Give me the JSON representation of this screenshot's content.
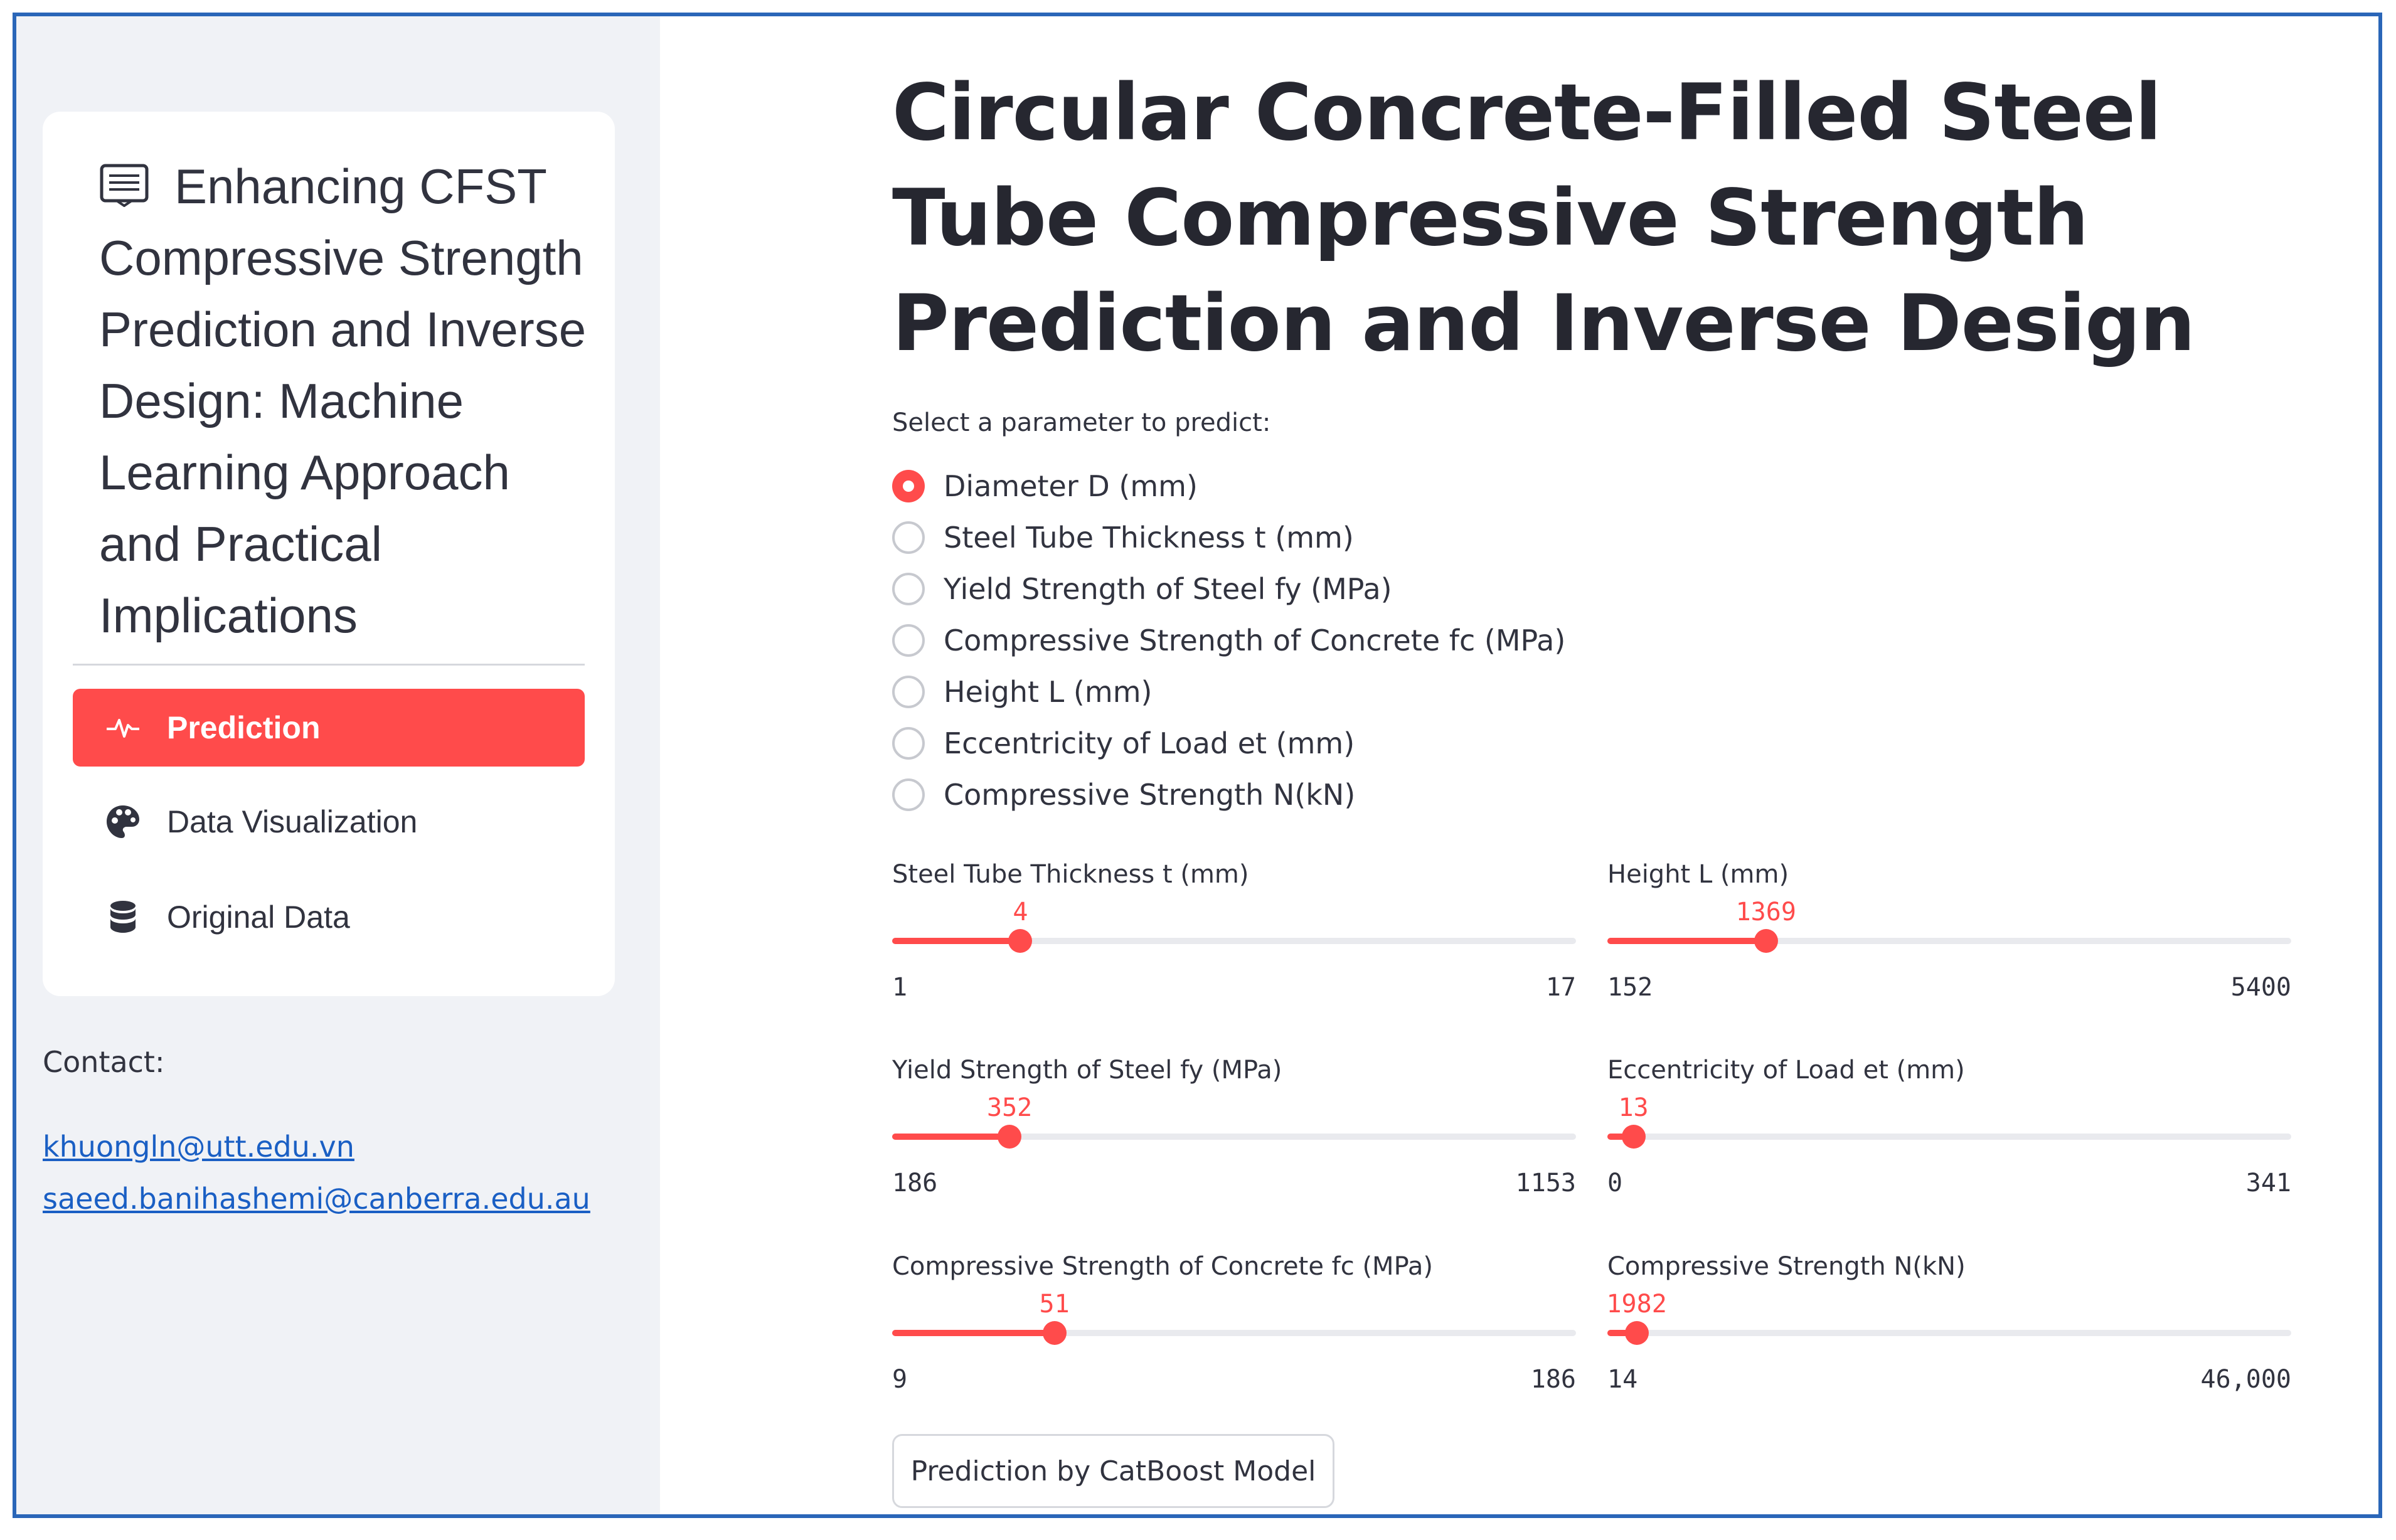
{
  "sidebar": {
    "title": "Enhancing CFST Compressive Strength Prediction and Inverse Design: Machine Learning Approach and Practical Implications",
    "title_icon": "menu-list-icon",
    "nav_items": [
      {
        "label": "Prediction",
        "icon": "pulse-icon",
        "active": true
      },
      {
        "label": "Data Visualization",
        "icon": "palette-icon",
        "active": false
      },
      {
        "label": "Original Data",
        "icon": "database-icon",
        "active": false
      }
    ],
    "contact_label": "Contact:",
    "contacts": [
      "khuongln@utt.edu.vn",
      "saeed.banihashemi@canberra.edu.au"
    ]
  },
  "main": {
    "title": "Circular Concrete-Filled Steel Tube Compressive Strength Prediction and Inverse Design",
    "radio_label": "Select a parameter to predict:",
    "radio_options": [
      {
        "label": "Diameter D (mm)",
        "checked": true
      },
      {
        "label": "Steel Tube Thickness t (mm)",
        "checked": false
      },
      {
        "label": "Yield Strength of Steel fy (MPa)",
        "checked": false
      },
      {
        "label": "Compressive Strength of Concrete fc (MPa)",
        "checked": false
      },
      {
        "label": "Height L (mm)",
        "checked": false
      },
      {
        "label": "Eccentricity of Load et (mm)",
        "checked": false
      },
      {
        "label": "Compressive Strength N(kN)",
        "checked": false
      }
    ],
    "sliders": [
      {
        "label": "Steel Tube Thickness t (mm)",
        "value": 4,
        "min": 1,
        "max": 17,
        "value_text": "4",
        "min_text": "1",
        "max_text": "17"
      },
      {
        "label": "Height L (mm)",
        "value": 1369,
        "min": 152,
        "max": 5400,
        "value_text": "1369",
        "min_text": "152",
        "max_text": "5400"
      },
      {
        "label": "Yield Strength of Steel fy (MPa)",
        "value": 352,
        "min": 186,
        "max": 1153,
        "value_text": "352",
        "min_text": "186",
        "max_text": "1153"
      },
      {
        "label": "Eccentricity of Load et (mm)",
        "value": 13,
        "min": 0,
        "max": 341,
        "value_text": "13",
        "min_text": "0",
        "max_text": "341"
      },
      {
        "label": "Compressive Strength of Concrete fc (MPa)",
        "value": 51,
        "min": 9,
        "max": 186,
        "value_text": "51",
        "min_text": "9",
        "max_text": "186"
      },
      {
        "label": "Compressive Strength N(kN)",
        "value": 1982,
        "min": 14,
        "max": 46000,
        "value_text": "1982",
        "min_text": "14",
        "max_text": "46,000"
      }
    ],
    "button_label": "Prediction by CatBoost Model"
  },
  "colors": {
    "accent": "#ff4b4b",
    "sidebar_bg": "#f0f2f6",
    "link": "#1a5fc4",
    "frame_border": "#2a66b8"
  }
}
